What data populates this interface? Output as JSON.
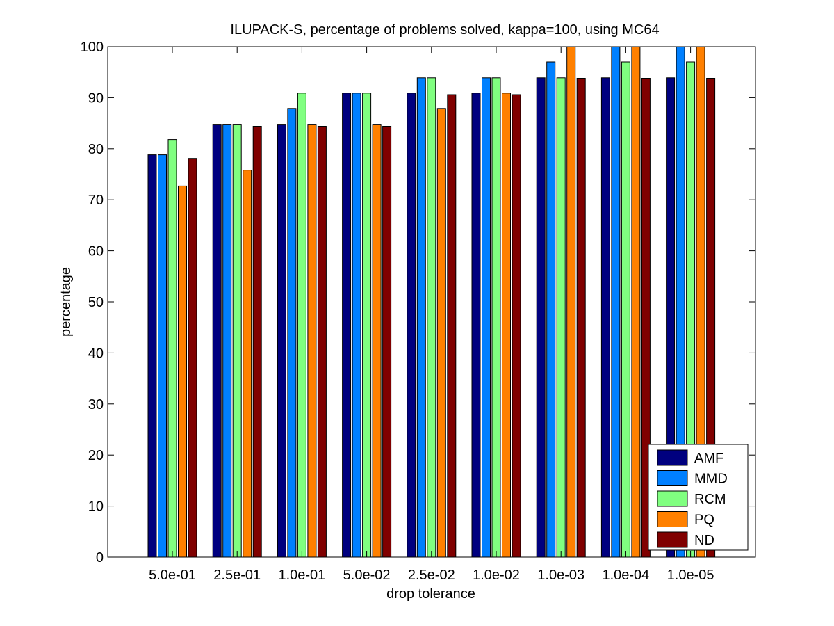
{
  "chart_data": {
    "type": "bar",
    "title": "ILUPACK-S, percentage of problems solved, kappa=100, using MC64",
    "xlabel": "drop tolerance",
    "ylabel": "percentage",
    "ylim": [
      0,
      100
    ],
    "yticks": [
      0,
      10,
      20,
      30,
      40,
      50,
      60,
      70,
      80,
      90,
      100
    ],
    "categories": [
      "5.0e-01",
      "2.5e-01",
      "1.0e-01",
      "5.0e-02",
      "2.5e-02",
      "1.0e-02",
      "1.0e-03",
      "1.0e-04",
      "1.0e-05"
    ],
    "series": [
      {
        "name": "AMF",
        "color": "#00007f",
        "values": [
          78.8,
          84.8,
          84.8,
          90.9,
          90.9,
          90.9,
          93.9,
          93.9,
          93.9
        ]
      },
      {
        "name": "MMD",
        "color": "#0080ff",
        "values": [
          78.8,
          84.8,
          87.9,
          90.9,
          93.9,
          93.9,
          97.0,
          100,
          100
        ]
      },
      {
        "name": "RCM",
        "color": "#80ff80",
        "values": [
          81.8,
          84.8,
          90.9,
          90.9,
          93.9,
          93.9,
          93.9,
          97.0,
          97.0
        ]
      },
      {
        "name": "PQ",
        "color": "#ff8000",
        "values": [
          72.7,
          75.8,
          84.8,
          84.8,
          87.9,
          90.9,
          100,
          100,
          100
        ]
      },
      {
        "name": "ND",
        "color": "#800000",
        "values": [
          78.1,
          84.4,
          84.4,
          84.4,
          90.6,
          90.6,
          93.8,
          93.8,
          93.8
        ]
      }
    ],
    "legend_position": "bottom-right",
    "grid": false
  }
}
